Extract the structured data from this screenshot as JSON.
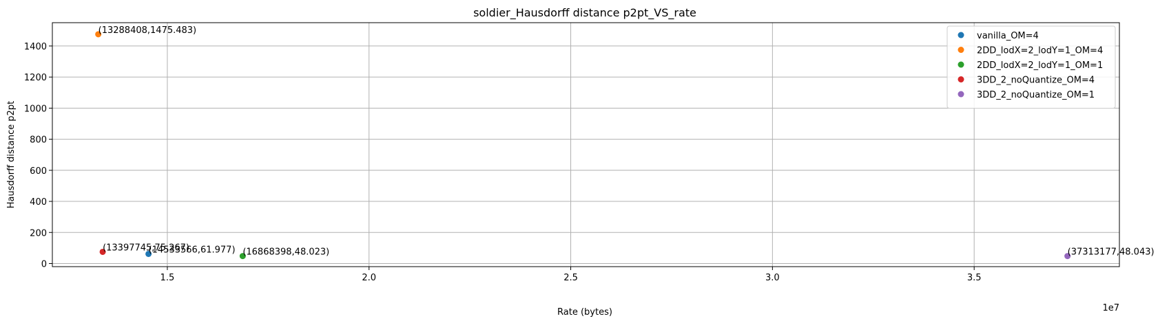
{
  "chart_data": {
    "type": "scatter",
    "title": "soldier_Hausdorff distance p2pt_VS_rate",
    "xlabel": "Rate (bytes)",
    "ylabel": "Hausdorff distance p2pt",
    "x_offset_label": "1e7",
    "xlim": [
      12150000,
      38600000
    ],
    "ylim": [
      -20,
      1550
    ],
    "x_ticks": [
      15000000,
      20000000,
      25000000,
      30000000,
      35000000
    ],
    "x_tick_labels": [
      "1.5",
      "2.0",
      "2.5",
      "3.0",
      "3.5"
    ],
    "y_ticks": [
      0,
      200,
      400,
      600,
      800,
      1000,
      1200,
      1400
    ],
    "y_tick_labels": [
      "0",
      "200",
      "400",
      "600",
      "800",
      "1000",
      "1200",
      "1400"
    ],
    "grid": true,
    "legend_position": "top-right",
    "series": [
      {
        "name": "vanilla_OM=4",
        "color": "#1f77b4",
        "points": [
          {
            "x": 14533566,
            "y": 61.977,
            "label": "(14533566,61.977)"
          }
        ]
      },
      {
        "name": "2DD_lodX=2_lodY=1_OM=4",
        "color": "#ff7f0e",
        "points": [
          {
            "x": 13288408,
            "y": 1475.483,
            "label": "(13288408,1475.483)"
          }
        ]
      },
      {
        "name": "2DD_lodX=2_lodY=1_OM=1",
        "color": "#2ca02c",
        "points": [
          {
            "x": 16868398,
            "y": 48.023,
            "label": "(16868398,48.023)"
          }
        ]
      },
      {
        "name": "3DD_2_noQuantize_OM=4",
        "color": "#d62728",
        "points": [
          {
            "x": 13397745,
            "y": 75.267,
            "label": "(13397745,75.267)"
          }
        ]
      },
      {
        "name": "3DD_2_noQuantize_OM=1",
        "color": "#9467bd",
        "points": [
          {
            "x": 37313177,
            "y": 48.043,
            "label": "(37313177,48.043)"
          }
        ]
      }
    ]
  }
}
